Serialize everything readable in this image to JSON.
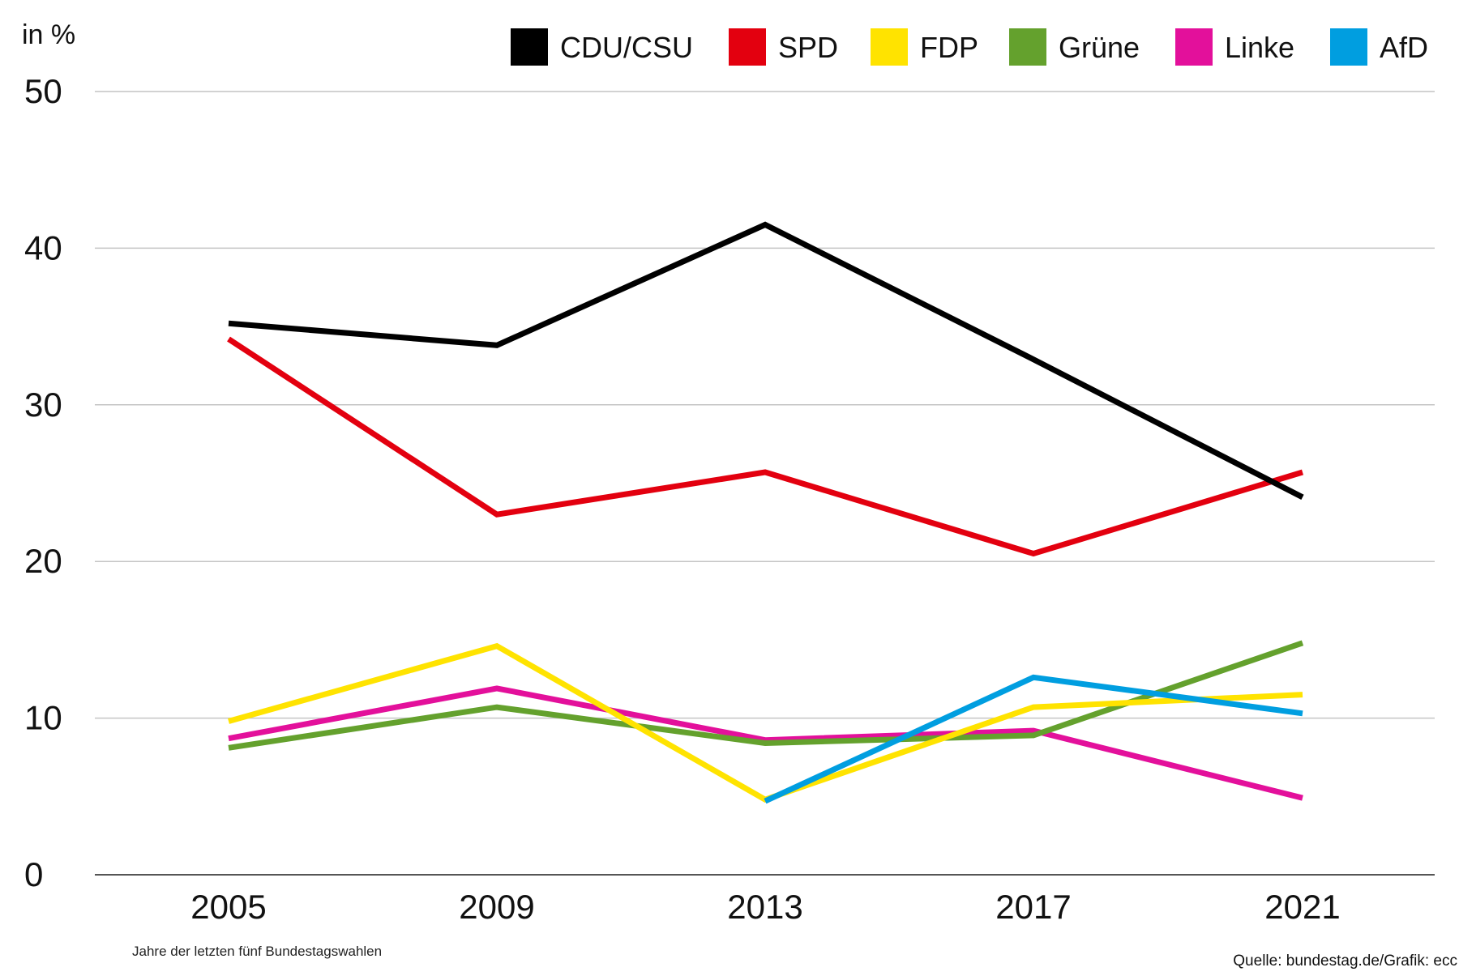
{
  "chart_data": {
    "type": "line",
    "unit_label": "in %",
    "x": [
      "2005",
      "2009",
      "2013",
      "2017",
      "2021"
    ],
    "ylim": [
      0,
      50
    ],
    "y_ticks": [
      "0",
      "10",
      "20",
      "30",
      "40",
      "50"
    ],
    "y_tick_values": [
      0,
      10,
      20,
      30,
      40,
      50
    ],
    "grid": true,
    "legend_position": "top-right",
    "series": [
      {
        "name": "CDU/CSU",
        "color": "#000000",
        "values": [
          35.2,
          33.8,
          41.5,
          32.9,
          24.1
        ]
      },
      {
        "name": "SPD",
        "color": "#e3000f",
        "values": [
          34.2,
          23.0,
          25.7,
          20.5,
          25.7
        ]
      },
      {
        "name": "FDP",
        "color": "#ffe300",
        "values": [
          9.8,
          14.6,
          4.8,
          10.7,
          11.5
        ]
      },
      {
        "name": "Grüne",
        "color": "#64a12d",
        "values": [
          8.1,
          10.7,
          8.4,
          8.9,
          14.8
        ]
      },
      {
        "name": "Linke",
        "color": "#e3109b",
        "values": [
          8.7,
          11.9,
          8.6,
          9.2,
          4.9
        ]
      },
      {
        "name": "AfD",
        "color": "#009ee0",
        "values": [
          null,
          null,
          4.7,
          12.6,
          10.3
        ]
      }
    ],
    "note": "Jahre der letzten fünf Bundestagswahlen",
    "source": "Quelle: bundestag.de/Grafik: ecc"
  }
}
